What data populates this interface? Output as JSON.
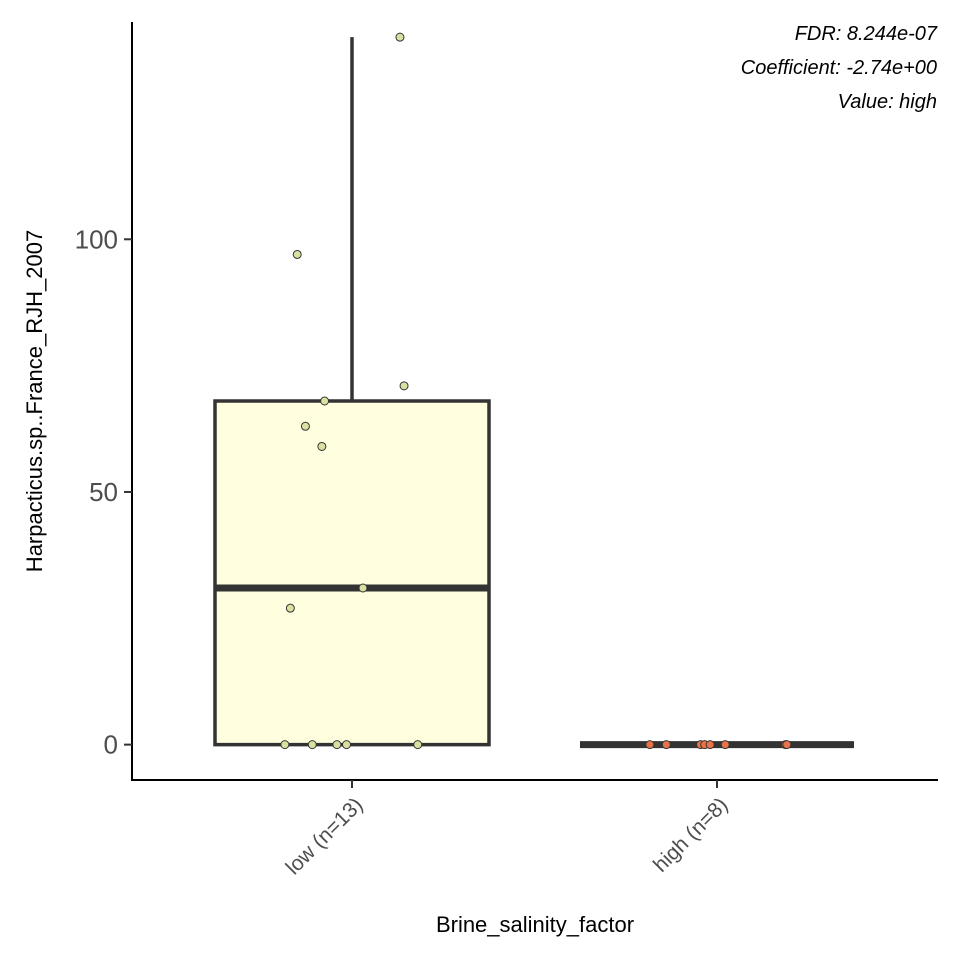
{
  "chart_data": {
    "type": "box",
    "xlabel": "Brine_salinity_factor",
    "ylabel": "Harpacticus.sp..France_RJH_2007",
    "ylim": [
      -7,
      143
    ],
    "yticks": [
      0,
      50,
      100
    ],
    "grid": false,
    "annotations": [
      "FDR: 8.244e-07",
      "Coefficient: -2.74e+00",
      "Value: high"
    ],
    "groups": [
      {
        "label": "low (n=13)",
        "fill": "#ffffe0",
        "point_color": "#d9e0a0",
        "q1": 0,
        "median": 31,
        "q3": 68,
        "whisker_low": 0,
        "whisker_high": 140,
        "points": [
          {
            "x_jitter": 0.35,
            "y": 140
          },
          {
            "x_jitter": -0.4,
            "y": 97
          },
          {
            "x_jitter": 0.38,
            "y": 71
          },
          {
            "x_jitter": -0.2,
            "y": 68
          },
          {
            "x_jitter": -0.34,
            "y": 63
          },
          {
            "x_jitter": -0.22,
            "y": 59
          },
          {
            "x_jitter": 0.08,
            "y": 31
          },
          {
            "x_jitter": -0.45,
            "y": 27
          },
          {
            "x_jitter": -0.49,
            "y": 0
          },
          {
            "x_jitter": -0.29,
            "y": 0
          },
          {
            "x_jitter": -0.11,
            "y": 0
          },
          {
            "x_jitter": -0.04,
            "y": 0
          },
          {
            "x_jitter": 0.48,
            "y": 0
          }
        ]
      },
      {
        "label": "high (n=8)",
        "fill": "#e34a33",
        "point_color": "#e8734a",
        "q1": 0,
        "median": 0,
        "q3": 0,
        "whisker_low": 0,
        "whisker_high": 0,
        "points": [
          {
            "x_jitter": -0.49,
            "y": 0
          },
          {
            "x_jitter": -0.37,
            "y": 0
          },
          {
            "x_jitter": -0.12,
            "y": 0
          },
          {
            "x_jitter": -0.09,
            "y": 0
          },
          {
            "x_jitter": -0.05,
            "y": 0
          },
          {
            "x_jitter": 0.06,
            "y": 0
          },
          {
            "x_jitter": 0.5,
            "y": 0
          },
          {
            "x_jitter": 0.51,
            "y": 0
          }
        ]
      }
    ]
  }
}
